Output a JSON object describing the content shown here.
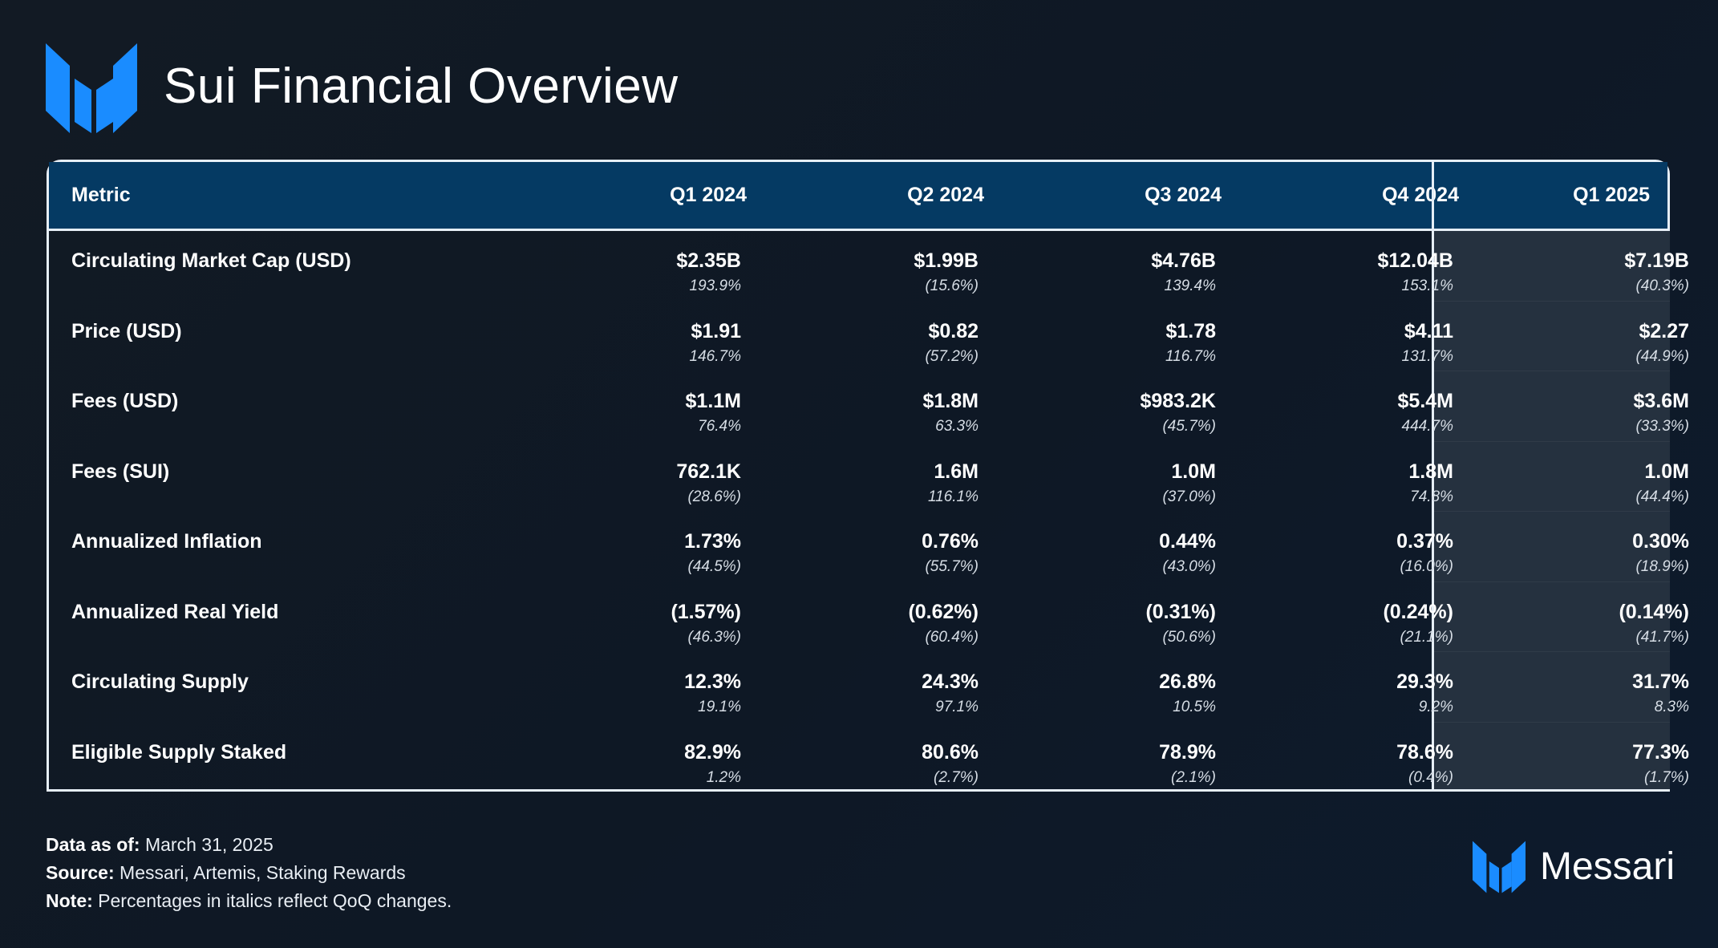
{
  "title": "Sui Financial Overview",
  "colors": {
    "brand_blue": "#1a8cff",
    "header_bg": "#053a63",
    "highlight_col_bg": "#25313f"
  },
  "table": {
    "headers": [
      "Metric",
      "Q1 2024",
      "Q2 2024",
      "Q3 2024",
      "Q4 2024",
      "Q1 2025"
    ],
    "rows": [
      {
        "label": "Circulating Market Cap (USD)",
        "values": [
          "$2.35B",
          "$1.99B",
          "$4.76B",
          "$12.04B",
          "$7.19B"
        ],
        "changes": [
          "193.9%",
          "(15.6%)",
          "139.4%",
          "153.1%",
          "(40.3%)"
        ]
      },
      {
        "label": "Price (USD)",
        "values": [
          "$1.91",
          "$0.82",
          "$1.78",
          "$4.11",
          "$2.27"
        ],
        "changes": [
          "146.7%",
          "(57.2%)",
          "116.7%",
          "131.7%",
          "(44.9%)"
        ]
      },
      {
        "label": "Fees (USD)",
        "values": [
          "$1.1M",
          "$1.8M",
          "$983.2K",
          "$5.4M",
          "$3.6M"
        ],
        "changes": [
          "76.4%",
          "63.3%",
          "(45.7%)",
          "444.7%",
          "(33.3%)"
        ]
      },
      {
        "label": "Fees (SUI)",
        "values": [
          "762.1K",
          "1.6M",
          "1.0M",
          "1.8M",
          "1.0M"
        ],
        "changes": [
          "(28.6%)",
          "116.1%",
          "(37.0%)",
          "74.8%",
          "(44.4%)"
        ]
      },
      {
        "label": "Annualized Inflation",
        "values": [
          "1.73%",
          "0.76%",
          "0.44%",
          "0.37%",
          "0.30%"
        ],
        "changes": [
          "(44.5%)",
          "(55.7%)",
          "(43.0%)",
          "(16.0%)",
          "(18.9%)"
        ]
      },
      {
        "label": "Annualized Real Yield",
        "values": [
          "(1.57%)",
          "(0.62%)",
          "(0.31%)",
          "(0.24%)",
          "(0.14%)"
        ],
        "changes": [
          "(46.3%)",
          "(60.4%)",
          "(50.6%)",
          "(21.1%)",
          "(41.7%)"
        ]
      },
      {
        "label": "Circulating Supply",
        "values": [
          "12.3%",
          "24.3%",
          "26.8%",
          "29.3%",
          "31.7%"
        ],
        "changes": [
          "19.1%",
          "97.1%",
          "10.5%",
          "9.2%",
          "8.3%"
        ]
      },
      {
        "label": "Eligible Supply Staked",
        "values": [
          "82.9%",
          "80.6%",
          "78.9%",
          "78.6%",
          "77.3%"
        ],
        "changes": [
          "1.2%",
          "(2.7%)",
          "(2.1%)",
          "(0.4%)",
          "(1.7%)"
        ]
      }
    ]
  },
  "footer": {
    "data_as_of_label": "Data as of:",
    "data_as_of_value": "March 31, 2025",
    "source_label": "Source:",
    "source_value": "Messari, Artemis, Staking Rewards",
    "note_label": "Note:",
    "note_value": "Percentages in italics reflect QoQ changes."
  },
  "brand": {
    "name": "Messari",
    "logo_icon": "messari-logo-icon"
  }
}
